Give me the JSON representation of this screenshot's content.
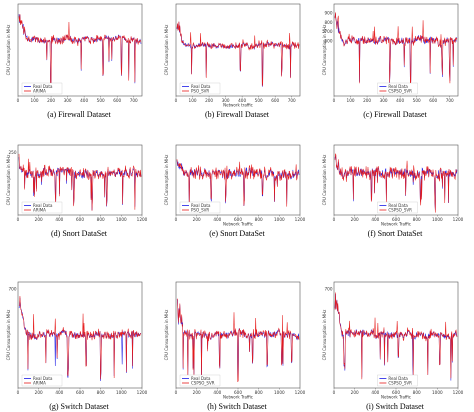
{
  "colors": {
    "real": "#1a1ae6",
    "pred": "#e61a1a",
    "frame": "#555555"
  },
  "chart_data": [
    {
      "id": "a",
      "type": "line",
      "caption": "(a) Firewall Dataset",
      "ylabel": "CPU Consumption in MHz",
      "xlabel": "",
      "xlim": [
        0,
        750
      ],
      "ylim": [
        0,
        1200
      ],
      "xticks": [
        0,
        100,
        200,
        300,
        400,
        500,
        600,
        700
      ],
      "yticks": [],
      "legend": {
        "position": "bottom-left",
        "entries": [
          "Real Data",
          "ARIMA"
        ]
      },
      "series": [
        {
          "name": "Real Data",
          "values": []
        },
        {
          "name": "ARIMA",
          "values": []
        }
      ],
      "level": 0.62,
      "noise": 0.06,
      "spikes": [
        0.26,
        0.51,
        0.69,
        0.84,
        0.9,
        0.95
      ],
      "start_peak": 0.95
    },
    {
      "id": "b",
      "type": "line",
      "caption": "(b) Firewall Dataset",
      "ylabel": "CPU Consumption in MHz",
      "xlabel": "Network traffic",
      "xlim": [
        0,
        750
      ],
      "ylim": [
        0,
        1200
      ],
      "xticks": [
        0,
        100,
        200,
        300,
        400,
        500,
        600,
        700
      ],
      "yticks": [],
      "legend": {
        "position": "bottom-left",
        "entries": [
          "Real Data",
          "PSO_SVR"
        ]
      },
      "series": [
        {
          "name": "Real Data",
          "values": []
        },
        {
          "name": "PSO_SVR",
          "values": []
        }
      ],
      "level": 0.55,
      "noise": 0.05,
      "spikes": [
        0.24,
        0.52,
        0.7,
        0.86,
        0.93
      ],
      "start_peak": 0.9
    },
    {
      "id": "c",
      "type": "line",
      "caption": "(c) Firewall Dataset",
      "ylabel": "CPU Consumption in MHz",
      "xlabel": "",
      "xlim": [
        0,
        750
      ],
      "ylim": [
        0,
        1000
      ],
      "xticks": [
        0,
        100,
        200,
        300,
        400,
        500,
        600,
        700
      ],
      "yticks": [
        600,
        700,
        800,
        900
      ],
      "legend": {
        "position": "bottom-center",
        "entries": [
          "Real Data",
          "CSPSO_SVR"
        ]
      },
      "series": [
        {
          "name": "Real Data",
          "values": []
        },
        {
          "name": "CSPSO_SVR",
          "values": []
        }
      ],
      "level": 0.6,
      "noise": 0.07,
      "spikes": [
        0.2,
        0.45,
        0.62,
        0.78,
        0.88,
        0.94
      ],
      "start_peak": 0.98
    },
    {
      "id": "d",
      "type": "line",
      "caption": "(d) Snort DataSet",
      "ylabel": "CPU Consumption in MHz",
      "xlabel": "",
      "xlim": [
        0,
        1200
      ],
      "ylim": [
        0,
        280
      ],
      "xticks": [
        0,
        200,
        400,
        600,
        800,
        1000,
        1200
      ],
      "yticks": [
        250
      ],
      "legend": {
        "position": "bottom-left",
        "entries": [
          "Real Data",
          "ARIMA"
        ]
      },
      "series": [
        {
          "name": "Real Data",
          "values": []
        },
        {
          "name": "ARIMA",
          "values": []
        }
      ],
      "level": 0.6,
      "noise": 0.12,
      "spikes": [
        0.12,
        0.3,
        0.45,
        0.6,
        0.72,
        0.85,
        0.95
      ],
      "start_peak": 0.8
    },
    {
      "id": "e",
      "type": "line",
      "caption": "(e) Snort DataSet",
      "ylabel": "CPU Consumption in MHz",
      "xlabel": "Network Traffic",
      "xlim": [
        0,
        1200
      ],
      "ylim": [
        0,
        280
      ],
      "xticks": [
        0,
        200,
        400,
        600,
        800,
        1000,
        1200
      ],
      "yticks": [],
      "legend": {
        "position": "bottom-left",
        "entries": [
          "Real Data",
          "PSO_SVR"
        ]
      },
      "series": [
        {
          "name": "Real Data",
          "values": []
        },
        {
          "name": "PSO_SVR",
          "values": []
        }
      ],
      "level": 0.6,
      "noise": 0.13,
      "spikes": [
        0.1,
        0.28,
        0.4,
        0.55,
        0.7,
        0.8,
        0.9
      ],
      "start_peak": 0.85
    },
    {
      "id": "f",
      "type": "line",
      "caption": "(f) Snort DataSet",
      "ylabel": "CPU Consumption in MHz",
      "xlabel": "Network Traffic",
      "xlim": [
        0,
        1200
      ],
      "ylim": [
        0,
        280
      ],
      "xticks": [
        0,
        200,
        400,
        600,
        800,
        1000,
        1200
      ],
      "yticks": [],
      "legend": {
        "position": "bottom-center",
        "entries": [
          "Real Data",
          "CSPSO_SVR"
        ]
      },
      "series": [
        {
          "name": "Real Data",
          "values": []
        },
        {
          "name": "CSPSO_SVR",
          "values": []
        }
      ],
      "level": 0.6,
      "noise": 0.13,
      "spikes": [
        0.15,
        0.3,
        0.42,
        0.58,
        0.7,
        0.82,
        0.93
      ],
      "start_peak": 0.85
    },
    {
      "id": "g",
      "type": "line",
      "caption": "(g) Switch Dataset",
      "ylabel": "CPU Consumption in MHz",
      "xlabel": "",
      "xlim": [
        0,
        1200
      ],
      "ylim": [
        0,
        750
      ],
      "xticks": [
        0,
        200,
        400,
        600,
        800,
        1000,
        1200
      ],
      "yticks": [
        700
      ],
      "legend": {
        "position": "bottom-left",
        "entries": [
          "Real Data",
          "ARIMA"
        ]
      },
      "series": [
        {
          "name": "Real Data",
          "values": []
        },
        {
          "name": "ARIMA",
          "values": []
        }
      ],
      "level": 0.5,
      "noise": 0.06,
      "spikes": [
        0.22,
        0.4,
        0.55,
        0.67,
        0.78,
        0.88,
        0.93
      ],
      "start_peak": 0.95
    },
    {
      "id": "h",
      "type": "line",
      "caption": "(h) Switch Dataset",
      "ylabel": "CPU Consumption in MHz",
      "xlabel": "Network Traffic",
      "xlim": [
        0,
        1200
      ],
      "ylim": [
        0,
        750
      ],
      "xticks": [
        0,
        200,
        400,
        600,
        800,
        1000,
        1200
      ],
      "yticks": [],
      "legend": {
        "position": "bottom-left",
        "entries": [
          "Real Data",
          "CSPSO_SVR"
        ]
      },
      "series": [
        {
          "name": "Real Data",
          "values": []
        },
        {
          "name": "CSPSO_SVR",
          "values": []
        }
      ],
      "level": 0.5,
      "noise": 0.06,
      "spikes": [
        0.05,
        0.2,
        0.35,
        0.5,
        0.62,
        0.74,
        0.86,
        0.94
      ],
      "start_peak": 0.95
    },
    {
      "id": "i",
      "type": "line",
      "caption": "(i) Switch Dataset",
      "ylabel": "CPU Consumption in MHz",
      "xlabel": "Network Traffic",
      "xlim": [
        0,
        1200
      ],
      "ylim": [
        0,
        750
      ],
      "xticks": [
        0,
        200,
        400,
        600,
        800,
        1000,
        1200
      ],
      "yticks": [
        700
      ],
      "legend": {
        "position": "bottom-center",
        "entries": [
          "Real Data",
          "CSPSO_SVR"
        ]
      },
      "series": [
        {
          "name": "Real Data",
          "values": []
        },
        {
          "name": "CSPSO_SVR",
          "values": []
        }
      ],
      "level": 0.5,
      "noise": 0.06,
      "spikes": [
        0.08,
        0.22,
        0.37,
        0.52,
        0.64,
        0.76,
        0.86,
        0.95
      ],
      "start_peak": 0.95
    }
  ]
}
